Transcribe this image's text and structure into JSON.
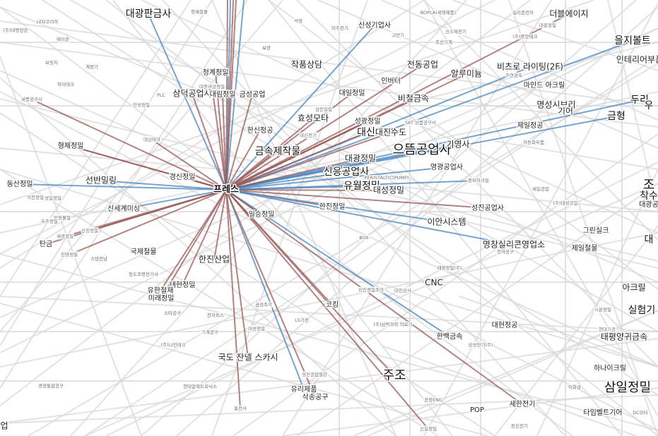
{
  "graph": {
    "hub": "프레스",
    "colors": {
      "background": "#ffffff",
      "edge_default": "#d8d8d8",
      "edge_brown": "#9a5a55",
      "edge_blue": "#4a86c0"
    },
    "nodes": [
      {
        "id": "n1",
        "label": "대광판금사",
        "tier": "lg"
      },
      {
        "id": "n2",
        "label": "(주)대명전관",
        "tier": "xs"
      },
      {
        "id": "n3",
        "label": "LED코리아",
        "tier": "xs"
      },
      {
        "id": "n4",
        "label": "에이콘",
        "tier": "xs"
      },
      {
        "id": "n5",
        "label": "청제철물",
        "tier": "xs"
      },
      {
        "id": "n6",
        "label": "신성기업사",
        "tier": "sm"
      },
      {
        "id": "n7",
        "label": "석영",
        "tier": "xs"
      },
      {
        "id": "n8",
        "label": "미주전기",
        "tier": "xs"
      },
      {
        "id": "n9",
        "label": "BOPLA(세영제품)",
        "tier": "xs"
      },
      {
        "id": "n10",
        "label": "실리콘전자",
        "tier": "xs"
      },
      {
        "id": "n11",
        "label": "더블에이지",
        "tier": "md"
      },
      {
        "id": "n12",
        "label": "고반기",
        "tier": "xs"
      },
      {
        "id": "n13",
        "label": "신소재전기",
        "tier": "xs"
      },
      {
        "id": "n14",
        "label": "조선기계",
        "tier": "xs"
      },
      {
        "id": "n15",
        "label": "(주)중앙테크",
        "tier": "xs"
      },
      {
        "id": "n16",
        "label": "을지볼트",
        "tier": "lg"
      },
      {
        "id": "n17",
        "label": "보광",
        "tier": "xs"
      },
      {
        "id": "n18",
        "label": "작품상담",
        "tier": "md"
      },
      {
        "id": "n19",
        "label": "대흥정밀",
        "tier": "xs"
      },
      {
        "id": "n20",
        "label": "비츠로 라이팅(2F)",
        "tier": "md"
      },
      {
        "id": "n21",
        "label": "인테리어부품",
        "tier": "md"
      },
      {
        "id": "n22",
        "label": "브릿지",
        "tier": "xs"
      },
      {
        "id": "n23",
        "label": "계량기",
        "tier": "xs"
      },
      {
        "id": "n24",
        "label": "전동공업",
        "tier": "md"
      },
      {
        "id": "n25",
        "label": "알루미늄",
        "tier": "md"
      },
      {
        "id": "n26",
        "label": "주연금속",
        "tier": "xs"
      },
      {
        "id": "n27",
        "label": "청계정밀",
        "tier": "sm"
      },
      {
        "id": "n28",
        "label": "인버터",
        "tier": "sm"
      },
      {
        "id": "n29",
        "label": "마인드 아크릴",
        "tier": "sm"
      },
      {
        "id": "n30",
        "label": "대종금강정밀",
        "tier": "xs"
      },
      {
        "id": "n31",
        "label": "하이테크",
        "tier": "xs"
      },
      {
        "id": "n32",
        "label": "삼덕공업사",
        "tier": "md"
      },
      {
        "id": "n33",
        "label": "대림정밀",
        "tier": "sm"
      },
      {
        "id": "n34",
        "label": "금성공업",
        "tier": "sm"
      },
      {
        "id": "n35",
        "label": "PLC",
        "tier": "xs"
      },
      {
        "id": "n36",
        "label": "대일정밀",
        "tier": "sm"
      },
      {
        "id": "n37",
        "label": "비철금속",
        "tier": "md"
      },
      {
        "id": "n38",
        "label": "두리",
        "tier": "lg"
      },
      {
        "id": "n39",
        "label": "세풍공구사",
        "tier": "xs"
      },
      {
        "id": "n40",
        "label": "진성정밀",
        "tier": "xs"
      },
      {
        "id": "n41",
        "label": "우",
        "tier": "lg"
      },
      {
        "id": "n42",
        "label": "명성시브리",
        "tier": "md"
      },
      {
        "id": "n43",
        "label": "기어",
        "tier": "md"
      },
      {
        "id": "n44",
        "label": "금형",
        "tier": "lg"
      },
      {
        "id": "n45",
        "label": "효성모타",
        "tier": "md"
      },
      {
        "id": "n46",
        "label": "삼진실업",
        "tier": "xs"
      },
      {
        "id": "n47",
        "label": "성광정밀",
        "tier": "sm"
      },
      {
        "id": "n48",
        "label": "SKT 상품공구사",
        "tier": "xs"
      },
      {
        "id": "n49",
        "label": "대신",
        "tier": "lg"
      },
      {
        "id": "n50",
        "label": "대진수도",
        "tier": "md"
      },
      {
        "id": "n51",
        "label": "제일정공",
        "tier": "sm"
      },
      {
        "id": "n52",
        "label": "한신정공",
        "tier": "sm"
      },
      {
        "id": "n53",
        "label": "대신전기",
        "tier": "xs"
      },
      {
        "id": "n54",
        "label": "대신테크",
        "tier": "xs"
      },
      {
        "id": "n55",
        "label": "형제정밀",
        "tier": "sm"
      },
      {
        "id": "n56",
        "label": "금속제작물",
        "tier": "lg"
      },
      {
        "id": "n57",
        "label": "으뜸공업사",
        "tier": "xl"
      },
      {
        "id": "n58",
        "label": "기영사",
        "tier": "md"
      },
      {
        "id": "n59",
        "label": "대광정밀",
        "tier": "md"
      },
      {
        "id": "n60",
        "label": "자동화부품",
        "tier": "xs"
      },
      {
        "id": "n61",
        "label": "철물",
        "tier": "xs"
      },
      {
        "id": "n62",
        "label": "신응공업사",
        "tier": "lg"
      },
      {
        "id": "n63",
        "label": "PERISTALTIC(PUMP)",
        "tier": "xs"
      },
      {
        "id": "n64",
        "label": "영광공업사",
        "tier": "sm"
      },
      {
        "id": "n65",
        "label": "선반밀링",
        "tier": "md"
      },
      {
        "id": "n66",
        "label": "경신정밀",
        "tier": "sm"
      },
      {
        "id": "n67",
        "label": "유월정밀",
        "tier": "lg"
      },
      {
        "id": "n68",
        "label": "대성정밀",
        "tier": "md"
      },
      {
        "id": "n69",
        "label": "중부아크릴",
        "tier": "xs"
      },
      {
        "id": "n70",
        "label": "조",
        "tier": "xl"
      },
      {
        "id": "n71",
        "label": "동산정밀",
        "tier": "sm"
      },
      {
        "id": "n72",
        "label": "세일공업",
        "tier": "xs"
      },
      {
        "id": "n73",
        "label": "착수",
        "tier": "lg"
      },
      {
        "id": "n74",
        "label": "이천정밀",
        "tier": "xs"
      },
      {
        "id": "n75",
        "label": "성일정밀",
        "tier": "xs"
      },
      {
        "id": "n76",
        "label": "(주)대성코일",
        "tier": "xs"
      },
      {
        "id": "n77",
        "label": "대광공",
        "tier": "sm"
      },
      {
        "id": "n78",
        "label": "신세계미싱",
        "tier": "sm"
      },
      {
        "id": "n79",
        "label": "한진정밀",
        "tier": "sm"
      },
      {
        "id": "n80",
        "label": "성진공업사",
        "tier": "sm"
      },
      {
        "id": "n81",
        "label": "일승정밀",
        "tier": "sm"
      },
      {
        "id": "n82",
        "label": "대",
        "tier": "lg"
      },
      {
        "id": "n83",
        "label": "밀링볼밀",
        "tier": "xs"
      },
      {
        "id": "n84",
        "label": "우주정밀",
        "tier": "xs"
      },
      {
        "id": "n85",
        "label": "이안시스템",
        "tier": "md"
      },
      {
        "id": "n86",
        "label": "그린실크",
        "tier": "sm"
      },
      {
        "id": "n87",
        "label": "세광정밀",
        "tier": "xs"
      },
      {
        "id": "n88",
        "label": "신승정밀",
        "tier": "xs"
      },
      {
        "id": "n89",
        "label": "탄금",
        "tier": "sm"
      },
      {
        "id": "n90",
        "label": "BOX",
        "tier": "xs"
      },
      {
        "id": "n91",
        "label": "영창실리콘영업소",
        "tier": "md"
      },
      {
        "id": "n92",
        "label": "제일철물",
        "tier": "sm"
      },
      {
        "id": "n93",
        "label": "진영정밀",
        "tier": "xs"
      },
      {
        "id": "n94",
        "label": "스텐전남",
        "tier": "xs"
      },
      {
        "id": "n95",
        "label": "국제철물",
        "tier": "sm"
      },
      {
        "id": "n96",
        "label": "한진산업",
        "tier": "md"
      },
      {
        "id": "n97",
        "label": "전자공구",
        "tier": "xs"
      },
      {
        "id": "n98",
        "label": "동도조명전기사",
        "tier": "xs"
      },
      {
        "id": "n99",
        "label": "태영정밀(주)",
        "tier": "xs"
      },
      {
        "id": "n100",
        "label": "태현정밀",
        "tier": "sm"
      },
      {
        "id": "n101",
        "label": "CNC",
        "tier": "md"
      },
      {
        "id": "n102",
        "label": "유한철재",
        "tier": "sm"
      },
      {
        "id": "n103",
        "label": "미래정밀",
        "tier": "sm"
      },
      {
        "id": "n104",
        "label": "신진정밀조각",
        "tier": "xs"
      },
      {
        "id": "n105",
        "label": "대진상사",
        "tier": "xs"
      },
      {
        "id": "n106",
        "label": "아크릴",
        "tier": "md"
      },
      {
        "id": "n107",
        "label": "시온정밀",
        "tier": "xs"
      },
      {
        "id": "n108",
        "label": "실험기",
        "tier": "lg"
      },
      {
        "id": "n109",
        "label": "현대기공",
        "tier": "xs"
      },
      {
        "id": "n110",
        "label": "스타공구",
        "tier": "xs"
      },
      {
        "id": "n111",
        "label": "전자피스",
        "tier": "xs"
      },
      {
        "id": "n112",
        "label": "금성조각",
        "tier": "xs"
      },
      {
        "id": "n113",
        "label": "코킹",
        "tier": "sm"
      },
      {
        "id": "n114",
        "label": "대현정공",
        "tier": "sm"
      },
      {
        "id": "n115",
        "label": "기계공구",
        "tier": "xs"
      },
      {
        "id": "n116",
        "label": "LS기전",
        "tier": "xs"
      },
      {
        "id": "n117",
        "label": "대성정밀",
        "tier": "xs"
      },
      {
        "id": "n118",
        "label": "(주)삼막과학 의료기",
        "tier": "xs"
      },
      {
        "id": "n119",
        "label": "한백금속",
        "tier": "sm"
      },
      {
        "id": "n120",
        "label": "태평양귀금속",
        "tier": "md"
      },
      {
        "id": "n121",
        "label": "(주)나인테크",
        "tier": "xs"
      },
      {
        "id": "n122",
        "label": "삼성전기(주)",
        "tier": "xs"
      },
      {
        "id": "n123",
        "label": "하나이크릴",
        "tier": "sm"
      },
      {
        "id": "n124",
        "label": "국도 잔넬 스카시",
        "tier": "md"
      },
      {
        "id": "n125",
        "label": "주조",
        "tier": "xl"
      },
      {
        "id": "n126",
        "label": "이화금",
        "tier": "xs"
      },
      {
        "id": "n127",
        "label": "성진공업철강",
        "tier": "xs"
      },
      {
        "id": "n128",
        "label": "삼일정밀",
        "tier": "xl"
      },
      {
        "id": "n129",
        "label": "유리제품",
        "tier": "sm"
      },
      {
        "id": "n130",
        "label": "경광통합공구",
        "tier": "xs"
      },
      {
        "id": "n131",
        "label": "현대알렉트로닉스",
        "tier": "xs"
      },
      {
        "id": "n132",
        "label": "삭송공구",
        "tier": "sm"
      },
      {
        "id": "n133",
        "label": "공장ENG",
        "tier": "xs"
      },
      {
        "id": "n134",
        "label": "세한전기",
        "tier": "sm"
      },
      {
        "id": "n135",
        "label": "타임벨트기어",
        "tier": "sm"
      },
      {
        "id": "n136",
        "label": "DC모터",
        "tier": "xs"
      },
      {
        "id": "n137",
        "label": "홍전사",
        "tier": "xs"
      },
      {
        "id": "n138",
        "label": "POP",
        "tier": "sm"
      },
      {
        "id": "n139",
        "label": "동진전기",
        "tier": "xs"
      },
      {
        "id": "n140",
        "label": "신일정밀",
        "tier": "xs"
      },
      {
        "id": "n141",
        "label": "업",
        "tier": "md"
      }
    ]
  }
}
